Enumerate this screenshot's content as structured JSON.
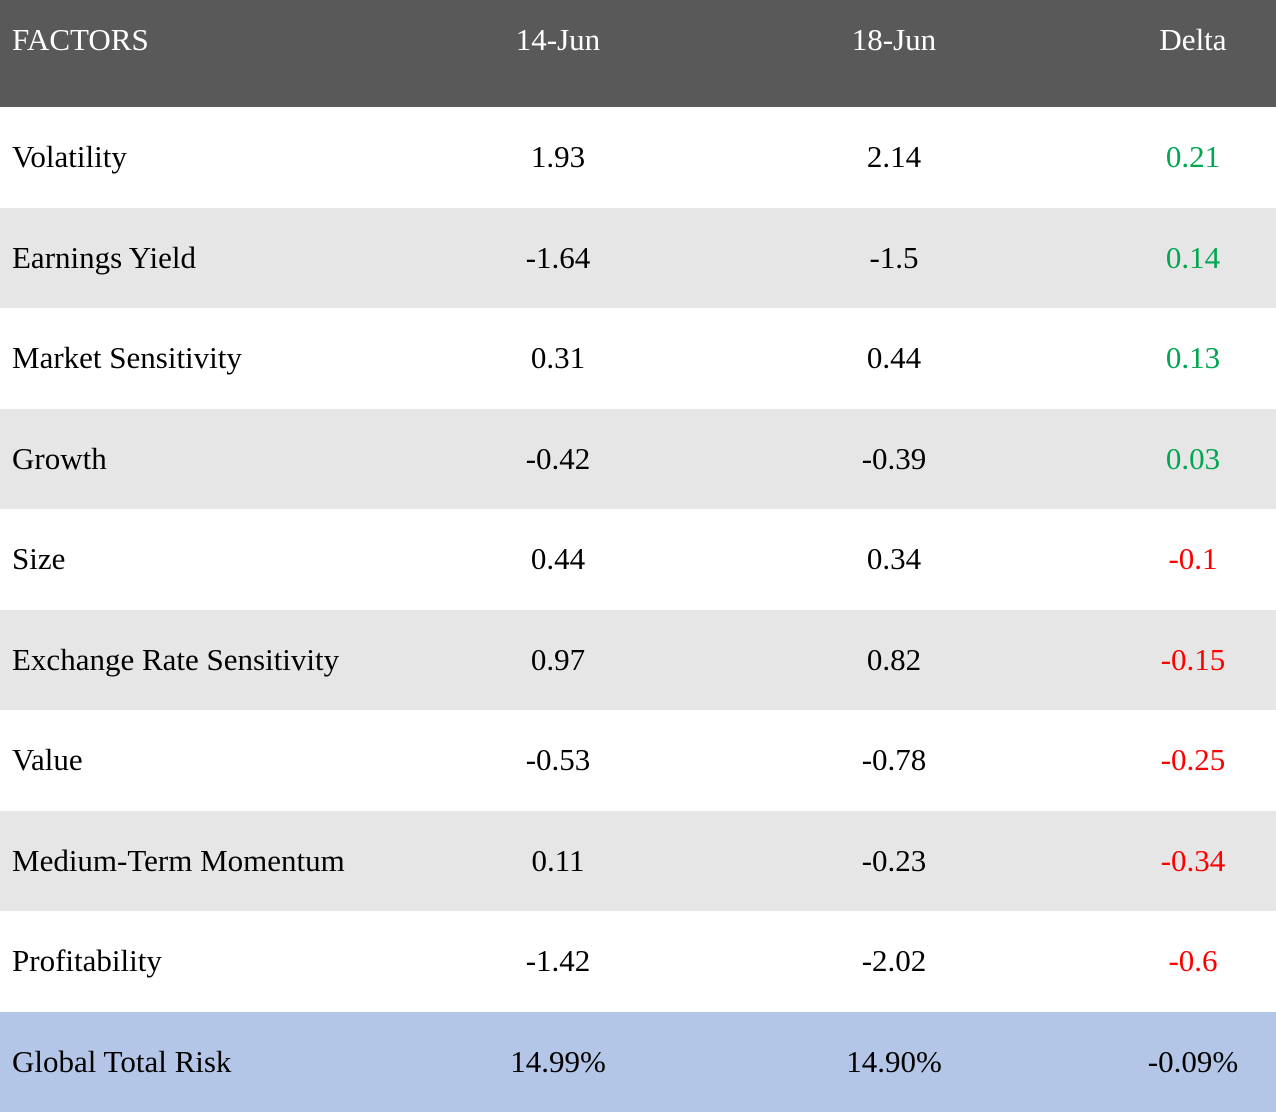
{
  "table": {
    "header": [
      "FACTORS",
      "14-Jun",
      "18-Jun",
      "Delta"
    ],
    "rows": [
      [
        "Volatility",
        "1.93",
        "2.14",
        "0.21"
      ],
      [
        "Earnings Yield",
        "-1.64",
        "-1.5",
        "0.14"
      ],
      [
        "Market Sensitivity",
        "0.31",
        "0.44",
        "0.13"
      ],
      [
        "Growth",
        "-0.42",
        "-0.39",
        "0.03"
      ],
      [
        "Size",
        "0.44",
        "0.34",
        "-0.1"
      ],
      [
        "Exchange Rate Sensitivity",
        "0.97",
        "0.82",
        "-0.15"
      ],
      [
        "Value",
        "-0.53",
        "-0.78",
        "-0.25"
      ],
      [
        "Medium-Term Momentum",
        "0.11",
        "-0.23",
        "-0.34"
      ],
      [
        "Profitability",
        "-1.42",
        "-2.02",
        "-0.6"
      ],
      [
        "Global Total Risk",
        "14.99%",
        "14.90%",
        "-0.09%"
      ]
    ],
    "delta_colors": [
      "#00a651",
      "#00a651",
      "#00a651",
      "#00a651",
      "#ff0000",
      "#ff0000",
      "#ff0000",
      "#ff0000",
      "#ff0000",
      "#000000"
    ]
  }
}
